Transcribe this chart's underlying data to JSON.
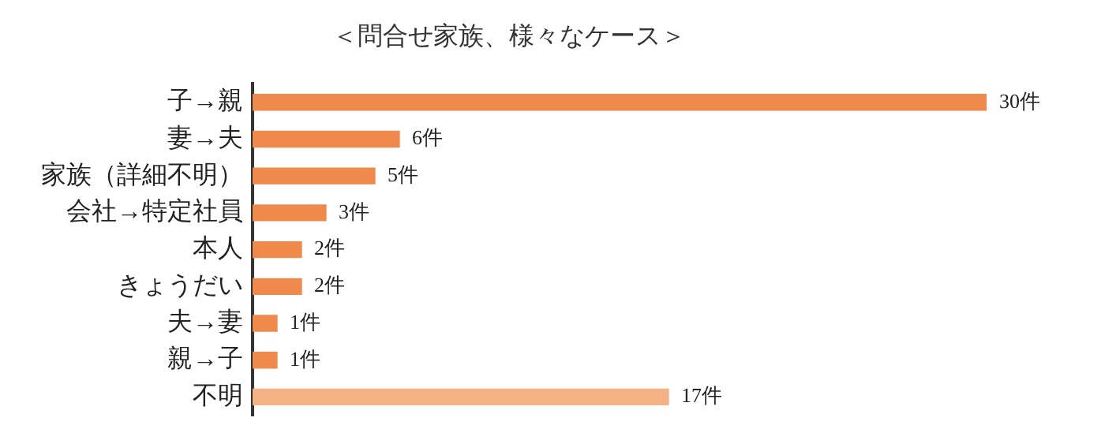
{
  "chart_data": {
    "type": "bar",
    "orientation": "horizontal",
    "title": "＜問合せ家族、様々なケース＞",
    "categories": [
      "子→親",
      "妻→夫",
      "家族（詳細不明）",
      "会社→特定社員",
      "本人",
      "きょうだい",
      "夫→妻",
      "親→子",
      "不明"
    ],
    "values": [
      30,
      6,
      5,
      3,
      2,
      2,
      1,
      1,
      17
    ],
    "colors": [
      "#ef8a4c",
      "#ef8a4c",
      "#ef8a4c",
      "#ef8a4c",
      "#ef8a4c",
      "#ef8a4c",
      "#ef8a4c",
      "#ef8a4c",
      "#f4b183"
    ],
    "value_labels": [
      "30件",
      "6件",
      "5件",
      "3件",
      "2件",
      "2件",
      "1件",
      "1件",
      "17件"
    ],
    "legend": false
  }
}
